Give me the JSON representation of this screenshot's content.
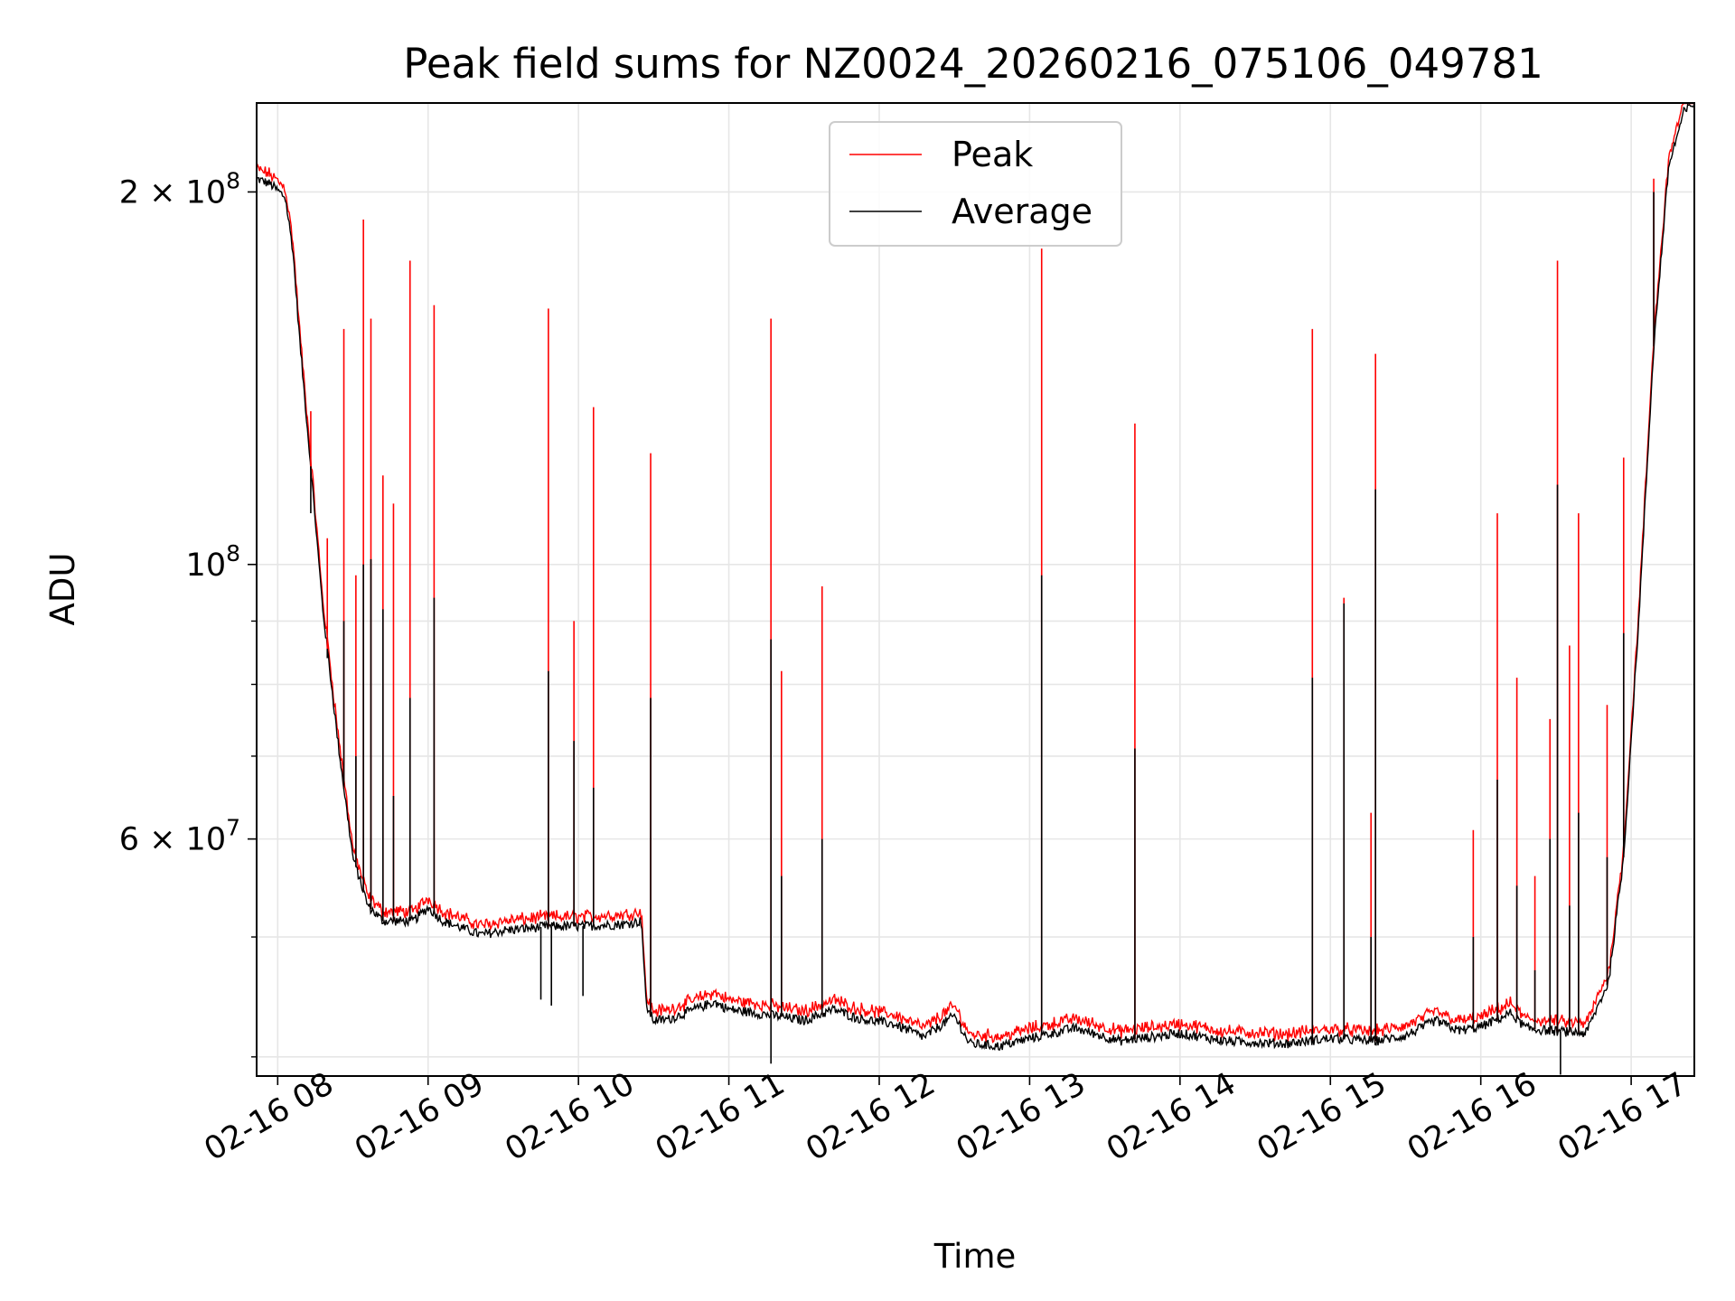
{
  "chart_data": {
    "type": "line",
    "title": "Peak field sums for NZ0024_20260216_075106_049781",
    "xlabel": "Time",
    "ylabel": "ADU",
    "yscale": "log",
    "xlim": [
      7.86,
      17.42
    ],
    "ylim": [
      38600000,
      236000000
    ],
    "grid": true,
    "legend_position": "upper center",
    "x_ticks": [
      {
        "value": 8,
        "label": "02-16 08"
      },
      {
        "value": 9,
        "label": "02-16 09"
      },
      {
        "value": 10,
        "label": "02-16 10"
      },
      {
        "value": 11,
        "label": "02-16 11"
      },
      {
        "value": 12,
        "label": "02-16 12"
      },
      {
        "value": 13,
        "label": "02-16 13"
      },
      {
        "value": 14,
        "label": "02-16 14"
      },
      {
        "value": 15,
        "label": "02-16 15"
      },
      {
        "value": 16,
        "label": "02-16 16"
      },
      {
        "value": 17,
        "label": "02-16 17"
      }
    ],
    "y_ticks": [
      {
        "value": 200000000,
        "mantissa": "2 × 10",
        "exp": "8"
      },
      {
        "value": 100000000,
        "mantissa": "10",
        "exp": "8"
      },
      {
        "value": 60000000,
        "mantissa": "6 × 10",
        "exp": "7"
      }
    ],
    "y_minor_ticks": [
      40000000,
      50000000,
      70000000,
      80000000,
      90000000
    ],
    "baseline": {
      "t": [
        7.86,
        7.95,
        8.05,
        8.1,
        8.15,
        8.22,
        8.3,
        8.4,
        8.5,
        8.6,
        8.7,
        8.9,
        9.0,
        9.1,
        9.35,
        9.5,
        9.8,
        10.0,
        10.3,
        10.42,
        10.45,
        10.5,
        10.6,
        10.9,
        11.0,
        11.3,
        11.5,
        11.7,
        11.85,
        12.1,
        12.3,
        12.5,
        12.6,
        12.8,
        13.0,
        13.3,
        13.6,
        14.0,
        14.3,
        14.7,
        15.0,
        15.3,
        15.5,
        15.7,
        15.85,
        16.0,
        16.2,
        16.3,
        16.45,
        16.7,
        16.85,
        16.95,
        17.05,
        17.15,
        17.25,
        17.35,
        17.42
      ],
      "avg": [
        205000000,
        203000000,
        198000000,
        180000000,
        150000000,
        120000000,
        92000000,
        72000000,
        58000000,
        53000000,
        51500000,
        51500000,
        52800000,
        51500000,
        50200000,
        50600000,
        51000000,
        51000000,
        51200000,
        51500000,
        44000000,
        42800000,
        42900000,
        44300000,
        43700000,
        43200000,
        42800000,
        43700000,
        43000000,
        42500000,
        41500000,
        43200000,
        41000000,
        40800000,
        41400000,
        42200000,
        41200000,
        41800000,
        41200000,
        41000000,
        41400000,
        41200000,
        41600000,
        42800000,
        42000000,
        42300000,
        43400000,
        42200000,
        42000000,
        41800000,
        46000000,
        58000000,
        90000000,
        150000000,
        210000000,
        232000000,
        236000000
      ],
      "peak_offset_ratio": 1.012
    },
    "series": [
      {
        "name": "Peak",
        "color": "#ff0000"
      },
      {
        "name": "Average",
        "color": "#000000"
      }
    ],
    "spikes": [
      {
        "t": 8.22,
        "peak": 133000000,
        "avg": 110000000
      },
      {
        "t": 8.33,
        "peak": 105000000,
        "avg": 84000000
      },
      {
        "t": 8.44,
        "peak": 155000000,
        "avg": 90000000
      },
      {
        "t": 8.52,
        "peak": 98000000,
        "avg": 70000000
      },
      {
        "t": 8.57,
        "peak": 190000000,
        "avg": 100000000
      },
      {
        "t": 8.62,
        "peak": 158000000,
        "avg": 101000000
      },
      {
        "t": 8.7,
        "peak": 118000000,
        "avg": 92000000
      },
      {
        "t": 8.77,
        "peak": 112000000,
        "avg": 65000000
      },
      {
        "t": 8.88,
        "peak": 176000000,
        "avg": 78000000
      },
      {
        "t": 9.04,
        "peak": 162000000,
        "avg": 94000000
      },
      {
        "t": 9.8,
        "peak": 161000000,
        "avg": 82000000
      },
      {
        "t": 9.97,
        "peak": 90000000,
        "avg": 72000000
      },
      {
        "t": 10.1,
        "peak": 134000000,
        "avg": 66000000
      },
      {
        "t": 10.48,
        "peak": 123000000,
        "avg": 78000000
      },
      {
        "t": 11.28,
        "peak": 158000000,
        "avg": 87000000
      },
      {
        "t": 11.35,
        "peak": 82000000,
        "avg": 56000000
      },
      {
        "t": 11.62,
        "peak": 96000000,
        "avg": 60000000
      },
      {
        "t": 13.08,
        "peak": 180000000,
        "avg": 98000000
      },
      {
        "t": 13.7,
        "peak": 130000000,
        "avg": 71000000
      },
      {
        "t": 14.88,
        "peak": 155000000,
        "avg": 81000000
      },
      {
        "t": 15.09,
        "peak": 94000000,
        "avg": 93000000
      },
      {
        "t": 15.27,
        "peak": 63000000,
        "avg": 50000000
      },
      {
        "t": 15.3,
        "peak": 148000000,
        "avg": 115000000
      },
      {
        "t": 15.95,
        "peak": 61000000,
        "avg": 50000000
      },
      {
        "t": 16.11,
        "peak": 110000000,
        "avg": 67000000
      },
      {
        "t": 16.24,
        "peak": 81000000,
        "avg": 55000000
      },
      {
        "t": 16.36,
        "peak": 56000000,
        "avg": 47000000
      },
      {
        "t": 16.46,
        "peak": 75000000,
        "avg": 60000000
      },
      {
        "t": 16.51,
        "peak": 176000000,
        "avg": 116000000
      },
      {
        "t": 16.59,
        "peak": 86000000,
        "avg": 53000000
      },
      {
        "t": 16.65,
        "peak": 110000000,
        "avg": 63000000
      },
      {
        "t": 16.84,
        "peak": 77000000,
        "avg": 58000000
      },
      {
        "t": 16.95,
        "peak": 122000000,
        "avg": 88000000
      },
      {
        "t": 17.15,
        "peak": 205000000,
        "avg": 200000000
      }
    ],
    "dips": [
      {
        "t": 9.75,
        "avg": 44500000
      },
      {
        "t": 9.82,
        "avg": 44000000
      },
      {
        "t": 10.03,
        "avg": 44800000
      },
      {
        "t": 11.28,
        "avg": 39500000
      },
      {
        "t": 16.53,
        "avg": 38700000
      }
    ]
  }
}
